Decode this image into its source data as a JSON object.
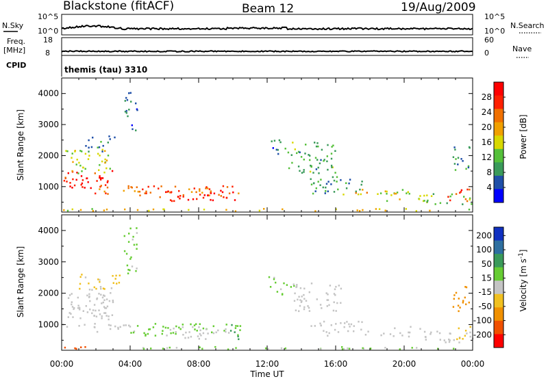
{
  "header": {
    "station": "Blackstone (fitACF)",
    "beam": "Beam 12",
    "date": "19/Aug/2009"
  },
  "strips": {
    "left_nsky": "N.Sky",
    "left_nsky_ticks": [
      "10^5",
      "10^0"
    ],
    "right_nsearch": "N.Search",
    "right_nsearch_ticks": [
      "10^5",
      "10^0"
    ],
    "left_freq": "Freq.",
    "left_freq_unit": "[MHz]",
    "left_freq_ticks": [
      "18",
      "8"
    ],
    "right_nave": "Nave",
    "right_nave_ticks": [
      "60",
      "0"
    ],
    "cpid_label": "CPID",
    "cpid_value": "themis (tau) 3310"
  },
  "colors": {
    "power_scale": [
      "#0000ff",
      "#1f4fa8",
      "#3a9a5a",
      "#55c03a",
      "#d8d800",
      "#f0a000",
      "#f07000",
      "#ff2000",
      "#ff0000"
    ],
    "velocity_scale": [
      "#1030c0",
      "#2e6fa0",
      "#3a9a5a",
      "#66cc33",
      "#c4c4c4",
      "#f0c020",
      "#f09000",
      "#f05000",
      "#ff0000"
    ],
    "ground_scatter": "#bebebe"
  },
  "chart_data": [
    {
      "type": "heatmap",
      "panel": "power",
      "xlabel": "Time UT",
      "ylabel": "Slant Range [km]",
      "xlim": [
        0,
        24
      ],
      "ylim": [
        180,
        4500
      ],
      "x_tick_labels": [
        "00:00",
        "04:00",
        "08:00",
        "12:00",
        "16:00",
        "20:00",
        "00:00"
      ],
      "y_tick_labels": [
        "1000",
        "2000",
        "3000",
        "4000"
      ],
      "y_ticks": [
        1000,
        2000,
        3000,
        4000
      ],
      "colorbar_label": "Power [dB]",
      "colorbar_ticks": [
        "4",
        "8",
        "12",
        "16",
        "20",
        "24",
        "28"
      ],
      "colorbar_range": [
        0,
        30
      ],
      "regions": [
        {
          "t0": 0.0,
          "t1": 3.0,
          "r0": 900,
          "r1": 1500,
          "value": 26
        },
        {
          "t0": 0.2,
          "t1": 2.8,
          "r0": 1400,
          "r1": 2200,
          "value": 14
        },
        {
          "t0": 1.0,
          "t1": 3.4,
          "r0": 2100,
          "r1": 2600,
          "value": 8
        },
        {
          "t0": 1.8,
          "t1": 4.2,
          "r0": 700,
          "r1": 1000,
          "value": 20
        },
        {
          "t0": 3.6,
          "t1": 4.4,
          "r0": 2600,
          "r1": 4100,
          "value": 6
        },
        {
          "t0": 4.0,
          "t1": 10.4,
          "r0": 600,
          "r1": 1000,
          "value": 22
        },
        {
          "t0": 6.0,
          "t1": 10.2,
          "r0": 500,
          "r1": 850,
          "value": 27
        },
        {
          "t0": 12.0,
          "t1": 12.8,
          "r0": 2000,
          "r1": 2500,
          "value": 6
        },
        {
          "t0": 13.0,
          "t1": 16.0,
          "r0": 1400,
          "r1": 2400,
          "value": 10
        },
        {
          "t0": 14.5,
          "t1": 17.5,
          "r0": 700,
          "r1": 1300,
          "value": 8
        },
        {
          "t0": 16.2,
          "t1": 19.0,
          "r0": 700,
          "r1": 900,
          "value": 18
        },
        {
          "t0": 18.5,
          "t1": 21.0,
          "r0": 500,
          "r1": 900,
          "value": 14
        },
        {
          "t0": 21.0,
          "t1": 24.0,
          "r0": 400,
          "r1": 800,
          "value": 12
        },
        {
          "t0": 22.5,
          "t1": 24.0,
          "r0": 500,
          "r1": 900,
          "value": 24
        },
        {
          "t0": 22.8,
          "t1": 23.8,
          "r0": 1500,
          "r1": 2300,
          "value": 8
        },
        {
          "t0": 0.0,
          "t1": 24.0,
          "r0": 180,
          "r1": 260,
          "value": 16
        }
      ]
    },
    {
      "type": "heatmap",
      "panel": "velocity",
      "xlabel": "Time UT",
      "ylabel": "Slant Range [km]",
      "xlim": [
        0,
        24
      ],
      "ylim": [
        180,
        4500
      ],
      "x_tick_labels": [
        "00:00",
        "04:00",
        "08:00",
        "12:00",
        "16:00",
        "20:00",
        "00:00"
      ],
      "y_tick_labels": [
        "1000",
        "2000",
        "3000",
        "4000"
      ],
      "y_ticks": [
        1000,
        2000,
        3000,
        4000
      ],
      "colorbar_label": "Velocity [m s^-1]",
      "colorbar_ticks": [
        "200",
        "100",
        "50",
        "15",
        "-15",
        "-50",
        "-100",
        "-200"
      ],
      "colorbar_range": [
        -250,
        250
      ],
      "regions": [
        {
          "t0": 0.0,
          "t1": 3.0,
          "r0": 900,
          "r1": 1500,
          "value": 0
        },
        {
          "t0": 0.2,
          "t1": 3.0,
          "r0": 1400,
          "r1": 2200,
          "value": 0
        },
        {
          "t0": 1.0,
          "t1": 3.4,
          "r0": 2100,
          "r1": 2600,
          "value": -30
        },
        {
          "t0": 1.8,
          "t1": 4.2,
          "r0": 700,
          "r1": 1000,
          "value": 0
        },
        {
          "t0": 3.6,
          "t1": 4.4,
          "r0": 2600,
          "r1": 4100,
          "value": 30
        },
        {
          "t0": 4.0,
          "t1": 10.4,
          "r0": 600,
          "r1": 1000,
          "value": 40
        },
        {
          "t0": 6.0,
          "t1": 9.8,
          "r0": 500,
          "r1": 900,
          "value": 0
        },
        {
          "t0": 9.8,
          "t1": 10.4,
          "r0": 500,
          "r1": 1000,
          "value": 120
        },
        {
          "t0": 12.0,
          "t1": 12.8,
          "r0": 2000,
          "r1": 2500,
          "value": 30
        },
        {
          "t0": 12.8,
          "t1": 13.6,
          "r0": 1900,
          "r1": 2300,
          "value": 60
        },
        {
          "t0": 13.5,
          "t1": 16.5,
          "r0": 1400,
          "r1": 2300,
          "value": 0
        },
        {
          "t0": 14.5,
          "t1": 18.0,
          "r0": 600,
          "r1": 1100,
          "value": 0
        },
        {
          "t0": 18.5,
          "t1": 21.0,
          "r0": 500,
          "r1": 900,
          "value": 0
        },
        {
          "t0": 21.0,
          "t1": 24.0,
          "r0": 400,
          "r1": 800,
          "value": 0
        },
        {
          "t0": 23.0,
          "t1": 24.0,
          "r0": 500,
          "r1": 900,
          "value": -60
        },
        {
          "t0": 22.8,
          "t1": 23.8,
          "r0": 1400,
          "r1": 2300,
          "value": -90
        },
        {
          "t0": 0.0,
          "t1": 4.0,
          "r0": 180,
          "r1": 260,
          "value": -150
        },
        {
          "t0": 4.0,
          "t1": 24.0,
          "r0": 180,
          "r1": 260,
          "value": 30
        }
      ]
    }
  ]
}
